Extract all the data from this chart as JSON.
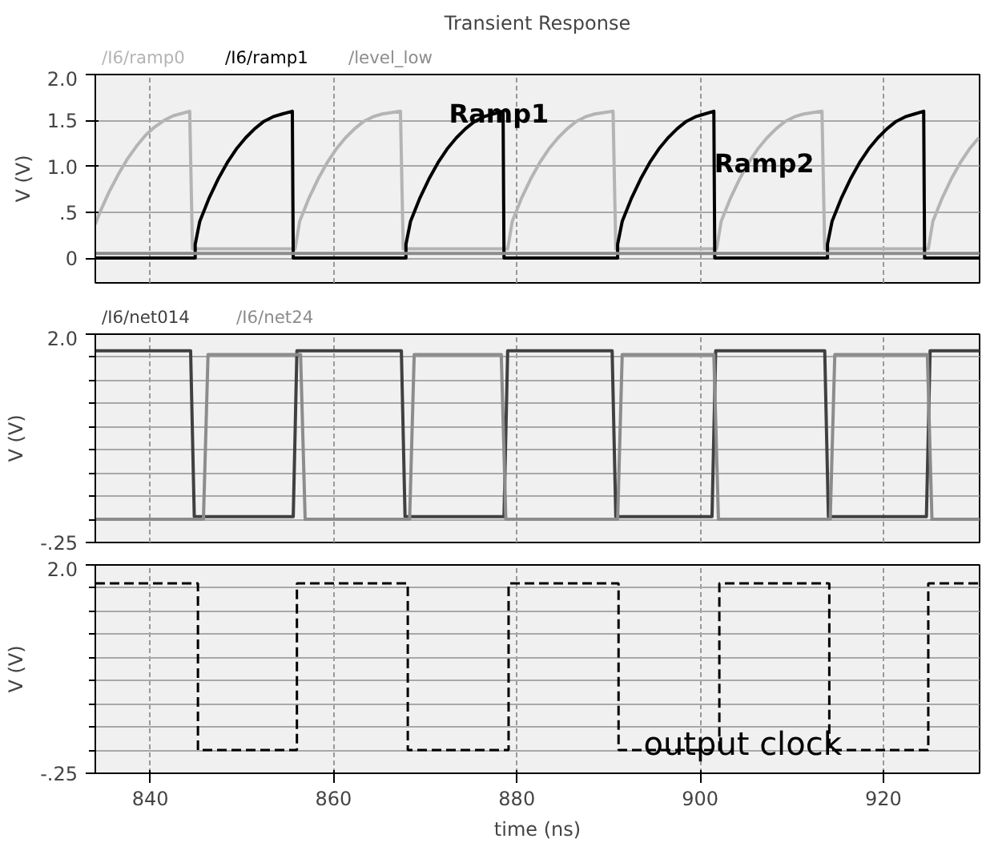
{
  "chart_data": [
    {
      "type": "line",
      "title": "Transient Response",
      "ylabel": "V (V)",
      "xlim": [
        834,
        930.5
      ],
      "xticks": [
        840,
        860,
        880,
        900,
        920
      ],
      "ylim": [
        -0.27,
        2.0
      ],
      "yticks": [
        0,
        {
          "value": 0.5,
          "label": ".5"
        },
        {
          "value": 1.0,
          "label": "1.0"
        },
        {
          "value": 1.5,
          "label": "1.5"
        },
        {
          "value": 2.0,
          "label": "2.0"
        }
      ],
      "tick_labels": "y",
      "grid": true,
      "legend": "top left",
      "line_style": "solid",
      "marker": "none",
      "series": [
        {
          "name": "/I6/ramp0",
          "color": "#b4b4b4",
          "x": [
            834,
            834.5,
            835.5,
            836.5,
            837.5,
            838.5,
            839.5,
            840.5,
            841.5,
            842.5,
            844.3,
            844.6,
            855.8,
            856.3,
            857.3,
            858.3,
            859.3,
            860.3,
            861.3,
            862.3,
            863.3,
            864.3,
            865.3,
            867.3,
            867.6,
            879,
            879.5,
            880.5,
            881.5,
            882.5,
            883.5,
            884.5,
            885.5,
            886.5,
            887.5,
            888.5,
            890.5,
            890.8,
            901.8,
            902.3,
            903.3,
            904.3,
            905.3,
            906.3,
            907.3,
            908.3,
            909.3,
            910.3,
            911.3,
            913.3,
            913.6,
            924.9,
            925.4,
            926.4,
            927.4,
            928.4,
            929.4,
            930.4
          ],
          "values": [
            0.37,
            0.5,
            0.72,
            0.91,
            1.08,
            1.22,
            1.34,
            1.43,
            1.5,
            1.55,
            1.6,
            0.1,
            0.1,
            0.4,
            0.65,
            0.86,
            1.04,
            1.19,
            1.31,
            1.41,
            1.49,
            1.54,
            1.57,
            1.6,
            0.1,
            0.1,
            0.4,
            0.65,
            0.86,
            1.04,
            1.19,
            1.31,
            1.41,
            1.49,
            1.54,
            1.57,
            1.6,
            0.1,
            0.1,
            0.4,
            0.65,
            0.86,
            1.04,
            1.19,
            1.31,
            1.41,
            1.49,
            1.54,
            1.57,
            1.6,
            0.1,
            0.1,
            0.4,
            0.65,
            0.86,
            1.04,
            1.19,
            1.31
          ]
        },
        {
          "name": "/I6/ramp1",
          "color": "#000000",
          "x": [
            834,
            844.9,
            844.9,
            845.4,
            846.4,
            847.4,
            848.4,
            849.4,
            850.4,
            851.4,
            852.4,
            853.4,
            854.4,
            855.5,
            855.6,
            867.9,
            867.9,
            868.4,
            869.4,
            870.4,
            871.4,
            872.4,
            873.4,
            874.4,
            875.4,
            876.4,
            877.4,
            878.5,
            878.6,
            891,
            891,
            891.5,
            892.5,
            893.5,
            894.5,
            895.5,
            896.5,
            897.5,
            898.5,
            899.5,
            900.5,
            901.5,
            901.6,
            913.9,
            913.9,
            914.4,
            915.4,
            916.4,
            917.4,
            918.4,
            919.4,
            920.4,
            921.4,
            922.4,
            923.4,
            924.4,
            924.5,
            930.5
          ],
          "values": [
            0,
            0,
            0.15,
            0.4,
            0.65,
            0.86,
            1.04,
            1.19,
            1.31,
            1.41,
            1.49,
            1.54,
            1.57,
            1.6,
            0,
            0,
            0.15,
            0.4,
            0.65,
            0.86,
            1.04,
            1.19,
            1.31,
            1.41,
            1.49,
            1.54,
            1.57,
            1.6,
            0,
            0,
            0.15,
            0.4,
            0.65,
            0.86,
            1.04,
            1.19,
            1.31,
            1.41,
            1.49,
            1.54,
            1.57,
            1.6,
            0,
            0,
            0.15,
            0.4,
            0.65,
            0.86,
            1.04,
            1.19,
            1.31,
            1.41,
            1.49,
            1.54,
            1.57,
            1.6,
            0,
            0
          ]
        },
        {
          "name": "/level_low",
          "color": "#8c8c8c",
          "x": [
            834,
            930.5
          ],
          "values": [
            0.05,
            0.05
          ]
        }
      ],
      "annotations": [
        "Ramp1",
        "Ramp2"
      ]
    },
    {
      "type": "line",
      "ylabel": "V (V)",
      "xlim": [
        834,
        930.5
      ],
      "xticks": [
        840,
        860,
        880,
        900,
        920
      ],
      "ylim": [
        -0.25,
        2.0
      ],
      "yticks": [
        {
          "value": -0.25,
          "label": "-.25"
        },
        {
          "value": 0,
          "label": null
        },
        {
          "value": 0.25,
          "label": null
        },
        {
          "value": 0.5,
          "label": null
        },
        {
          "value": 0.75,
          "label": null
        },
        {
          "value": 1.0,
          "label": null
        },
        {
          "value": 1.25,
          "label": null
        },
        {
          "value": 1.5,
          "label": null
        },
        {
          "value": 1.75,
          "label": null
        },
        {
          "value": 2.0,
          "label": "2.0"
        }
      ],
      "tick_labels": "y",
      "grid": true,
      "legend": "top left",
      "line_style": "solid",
      "marker": "none",
      "series": [
        {
          "name": "/I6/net014",
          "color": "#404040",
          "x": [
            834,
            844.4,
            844.8,
            855.6,
            856.0,
            867.4,
            867.8,
            878.6,
            879.0,
            890.4,
            890.8,
            901.3,
            901.7,
            913.6,
            914.0,
            924.7,
            925.1,
            930.5
          ],
          "values": [
            1.82,
            1.82,
            0.03,
            0.03,
            1.82,
            1.82,
            0.03,
            0.03,
            1.82,
            1.82,
            0.03,
            0.03,
            1.82,
            1.82,
            0.03,
            0.03,
            1.82,
            1.82
          ]
        },
        {
          "name": "/I6/net24",
          "color": "#8c8c8c",
          "x": [
            834,
            845.8,
            846.3,
            856.4,
            856.9,
            868.3,
            868.8,
            878.3,
            878.8,
            891.0,
            891.5,
            901.5,
            902.0,
            914.2,
            914.7,
            924.8,
            925.3,
            930.5
          ],
          "values": [
            0,
            0,
            1.78,
            1.78,
            0,
            0,
            1.78,
            1.78,
            0,
            0,
            1.78,
            1.78,
            0,
            0,
            1.78,
            1.78,
            0,
            0
          ]
        }
      ]
    },
    {
      "type": "step",
      "xlabel": "time (ns)",
      "ylabel": "V (V)",
      "xlim": [
        834,
        930.5
      ],
      "xticks": [
        840,
        860,
        880,
        900,
        920
      ],
      "ylim": [
        -0.25,
        2.0
      ],
      "yticks": [
        {
          "value": -0.25,
          "label": "-.25"
        },
        {
          "value": 0,
          "label": null
        },
        {
          "value": 0.25,
          "label": null
        },
        {
          "value": 0.5,
          "label": null
        },
        {
          "value": 0.75,
          "label": null
        },
        {
          "value": 1.0,
          "label": null
        },
        {
          "value": 1.25,
          "label": null
        },
        {
          "value": 1.5,
          "label": null
        },
        {
          "value": 1.75,
          "label": null
        },
        {
          "value": 2.0,
          "label": "2.0"
        }
      ],
      "grid": true,
      "line_style": "dashed",
      "marker": "none",
      "series": [
        {
          "color": "#000000",
          "x": [
            834,
            845.2,
            856,
            868.1,
            879.1,
            891.1,
            902.1,
            914.1,
            924.9,
            930.5
          ],
          "values": [
            1.8,
            0,
            1.8,
            0,
            1.8,
            0,
            1.8,
            0,
            1.8,
            1.8
          ]
        }
      ],
      "annotations": [
        "output clock"
      ]
    }
  ]
}
